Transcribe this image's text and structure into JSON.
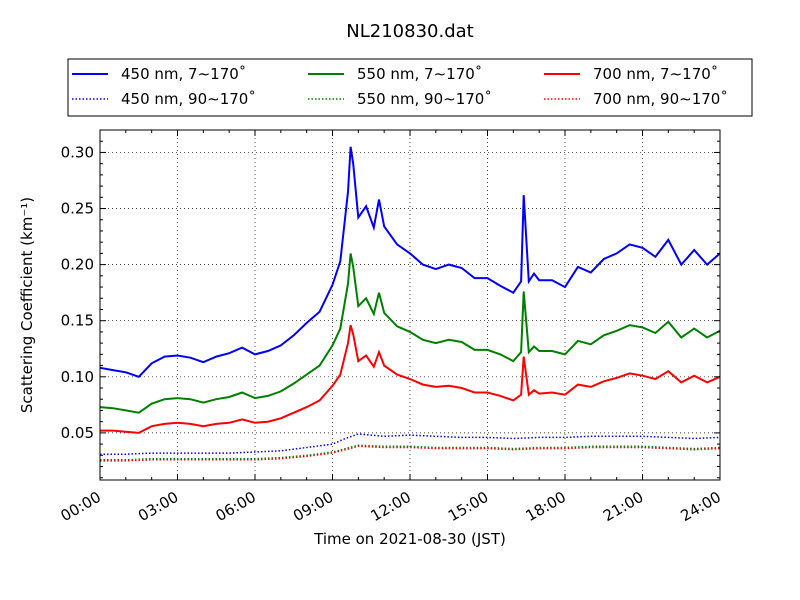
{
  "chart_data": {
    "type": "line",
    "title": "NL210830.dat",
    "xlabel": "Time on 2021-08-30 (JST)",
    "ylabel": "Scattering Coefficient (km⁻¹)",
    "xlim": [
      0,
      24
    ],
    "ylim": [
      0.008,
      0.32
    ],
    "xticks": [
      0,
      3,
      6,
      9,
      12,
      15,
      18,
      21,
      24
    ],
    "xtick_labels": [
      "00:00",
      "03:00",
      "06:00",
      "09:00",
      "12:00",
      "15:00",
      "18:00",
      "21:00",
      "24:00"
    ],
    "yticks": [
      0.05,
      0.1,
      0.15,
      0.2,
      0.25,
      0.3
    ],
    "ytick_labels": [
      "0.05",
      "0.10",
      "0.15",
      "0.20",
      "0.25",
      "0.30"
    ],
    "grid": true,
    "legend_position": "top",
    "series": [
      {
        "name": "450 nm, 7∼170˚",
        "color": "#0000ff",
        "style": "solid",
        "x": [
          0,
          0.5,
          1,
          1.5,
          2,
          2.5,
          3,
          3.5,
          4,
          4.5,
          5,
          5.5,
          6,
          6.5,
          7,
          7.5,
          8,
          8.5,
          9,
          9.3,
          9.6,
          9.7,
          9.8,
          10,
          10.3,
          10.6,
          10.8,
          11,
          11.5,
          12,
          12.5,
          13,
          13.5,
          14,
          14.5,
          15,
          15.5,
          16,
          16.3,
          16.4,
          16.6,
          16.8,
          17,
          17.5,
          18,
          18.5,
          19,
          19.5,
          20,
          20.5,
          21,
          21.5,
          22,
          22.5,
          23,
          23.5,
          24
        ],
        "y": [
          0.108,
          0.106,
          0.104,
          0.1,
          0.112,
          0.118,
          0.119,
          0.117,
          0.113,
          0.118,
          0.121,
          0.126,
          0.12,
          0.123,
          0.128,
          0.137,
          0.148,
          0.158,
          0.182,
          0.203,
          0.265,
          0.305,
          0.29,
          0.242,
          0.252,
          0.233,
          0.258,
          0.234,
          0.218,
          0.21,
          0.2,
          0.196,
          0.2,
          0.197,
          0.188,
          0.188,
          0.181,
          0.175,
          0.185,
          0.262,
          0.185,
          0.192,
          0.186,
          0.186,
          0.18,
          0.198,
          0.193,
          0.205,
          0.21,
          0.218,
          0.215,
          0.207,
          0.222,
          0.2,
          0.213,
          0.2,
          0.21
        ]
      },
      {
        "name": "450 nm, 90∼170˚",
        "color": "#0000ff",
        "style": "dotted",
        "x": [
          0,
          1,
          2,
          3,
          4,
          5,
          6,
          7,
          8,
          9,
          9.5,
          10,
          11,
          12,
          13,
          14,
          15,
          16,
          17,
          18,
          19,
          20,
          21,
          22,
          23,
          24
        ],
        "y": [
          0.031,
          0.031,
          0.032,
          0.032,
          0.032,
          0.032,
          0.033,
          0.034,
          0.037,
          0.04,
          0.045,
          0.049,
          0.047,
          0.048,
          0.047,
          0.046,
          0.046,
          0.045,
          0.046,
          0.046,
          0.047,
          0.047,
          0.047,
          0.046,
          0.045,
          0.046
        ]
      },
      {
        "name": "550 nm, 7∼170˚",
        "color": "#008000",
        "style": "solid",
        "x": [
          0,
          0.5,
          1,
          1.5,
          2,
          2.5,
          3,
          3.5,
          4,
          4.5,
          5,
          5.5,
          6,
          6.5,
          7,
          7.5,
          8,
          8.5,
          9,
          9.3,
          9.6,
          9.7,
          9.8,
          10,
          10.3,
          10.6,
          10.8,
          11,
          11.5,
          12,
          12.5,
          13,
          13.5,
          14,
          14.5,
          15,
          15.5,
          16,
          16.3,
          16.4,
          16.6,
          16.8,
          17,
          17.5,
          18,
          18.5,
          19,
          19.5,
          20,
          20.5,
          21,
          21.5,
          22,
          22.5,
          23,
          23.5,
          24
        ],
        "y": [
          0.073,
          0.072,
          0.07,
          0.068,
          0.076,
          0.08,
          0.081,
          0.08,
          0.077,
          0.08,
          0.082,
          0.086,
          0.081,
          0.083,
          0.087,
          0.094,
          0.102,
          0.11,
          0.128,
          0.143,
          0.183,
          0.21,
          0.198,
          0.163,
          0.17,
          0.156,
          0.175,
          0.157,
          0.145,
          0.14,
          0.133,
          0.13,
          0.133,
          0.131,
          0.124,
          0.124,
          0.12,
          0.114,
          0.122,
          0.176,
          0.122,
          0.127,
          0.123,
          0.123,
          0.12,
          0.132,
          0.129,
          0.137,
          0.141,
          0.146,
          0.144,
          0.139,
          0.149,
          0.135,
          0.143,
          0.135,
          0.141
        ]
      },
      {
        "name": "550 nm, 90∼170˚",
        "color": "#008000",
        "style": "dotted",
        "x": [
          0,
          1,
          2,
          3,
          4,
          5,
          6,
          7,
          8,
          9,
          9.5,
          10,
          11,
          12,
          13,
          14,
          15,
          16,
          17,
          18,
          19,
          20,
          21,
          22,
          23,
          24
        ],
        "y": [
          0.026,
          0.026,
          0.027,
          0.027,
          0.027,
          0.027,
          0.027,
          0.028,
          0.03,
          0.033,
          0.036,
          0.039,
          0.038,
          0.038,
          0.037,
          0.037,
          0.037,
          0.036,
          0.037,
          0.037,
          0.038,
          0.038,
          0.038,
          0.037,
          0.036,
          0.037
        ]
      },
      {
        "name": "700 nm, 7∼170˚",
        "color": "#ff0000",
        "style": "solid",
        "x": [
          0,
          0.5,
          1,
          1.5,
          2,
          2.5,
          3,
          3.5,
          4,
          4.5,
          5,
          5.5,
          6,
          6.5,
          7,
          7.5,
          8,
          8.5,
          9,
          9.3,
          9.6,
          9.7,
          9.8,
          10,
          10.3,
          10.6,
          10.8,
          11,
          11.5,
          12,
          12.5,
          13,
          13.5,
          14,
          14.5,
          15,
          15.5,
          16,
          16.3,
          16.4,
          16.6,
          16.8,
          17,
          17.5,
          18,
          18.5,
          19,
          19.5,
          20,
          20.5,
          21,
          21.5,
          22,
          22.5,
          23,
          23.5,
          24
        ],
        "y": [
          0.052,
          0.052,
          0.051,
          0.05,
          0.056,
          0.058,
          0.059,
          0.058,
          0.056,
          0.058,
          0.059,
          0.062,
          0.059,
          0.06,
          0.063,
          0.068,
          0.073,
          0.079,
          0.092,
          0.102,
          0.13,
          0.146,
          0.138,
          0.114,
          0.119,
          0.109,
          0.122,
          0.11,
          0.102,
          0.098,
          0.093,
          0.091,
          0.092,
          0.09,
          0.086,
          0.086,
          0.083,
          0.079,
          0.084,
          0.118,
          0.084,
          0.088,
          0.085,
          0.086,
          0.084,
          0.093,
          0.091,
          0.096,
          0.099,
          0.103,
          0.101,
          0.098,
          0.105,
          0.095,
          0.101,
          0.095,
          0.1
        ]
      },
      {
        "name": "700 nm, 90∼170˚",
        "color": "#ff0000",
        "style": "dotted",
        "x": [
          0,
          1,
          2,
          3,
          4,
          5,
          6,
          7,
          8,
          9,
          9.5,
          10,
          11,
          12,
          13,
          14,
          15,
          16,
          17,
          18,
          19,
          20,
          21,
          22,
          23,
          24
        ],
        "y": [
          0.025,
          0.025,
          0.026,
          0.026,
          0.026,
          0.026,
          0.026,
          0.027,
          0.029,
          0.032,
          0.035,
          0.038,
          0.037,
          0.037,
          0.036,
          0.036,
          0.036,
          0.035,
          0.036,
          0.036,
          0.037,
          0.037,
          0.037,
          0.036,
          0.035,
          0.036
        ]
      }
    ]
  }
}
